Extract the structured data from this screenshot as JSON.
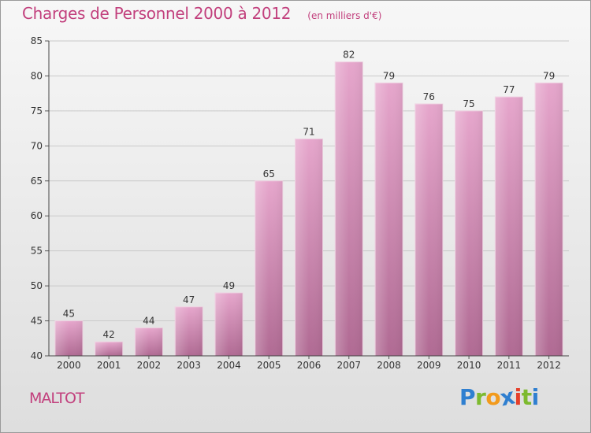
{
  "title": "Charges de Personnel 2000 à 2012",
  "unit": "(en milliers d'€)",
  "commune": "MALTOT",
  "logo": {
    "letters": [
      "P",
      "r",
      "o",
      "x",
      "i",
      "t",
      "i"
    ],
    "colors": [
      "#2f7fd0",
      "#7dba2f",
      "#f29a1c",
      "#2f7fd0",
      "#e5402a",
      "#7dba2f",
      "#2f7fd0"
    ]
  },
  "colors": {
    "bar_top": "#e6a6cc",
    "bar_bottom": "#b06a93",
    "title": "#c2407d"
  },
  "chart_data": {
    "type": "bar",
    "categories": [
      "2000",
      "2001",
      "2002",
      "2003",
      "2004",
      "2005",
      "2006",
      "2007",
      "2008",
      "2009",
      "2010",
      "2011",
      "2012"
    ],
    "values": [
      45,
      42,
      44,
      47,
      49,
      65,
      71,
      82,
      79,
      76,
      75,
      77,
      79
    ],
    "data_labels": [
      "45",
      "42",
      "44",
      "47",
      "49",
      "65",
      "71",
      "82",
      "79",
      "76",
      "75",
      "77",
      "79"
    ],
    "ylim": [
      40,
      85
    ],
    "yticks": [
      40,
      45,
      50,
      55,
      60,
      65,
      70,
      75,
      80,
      85
    ],
    "ytick_labels": [
      "40",
      "45",
      "50",
      "55",
      "60",
      "65",
      "70",
      "75",
      "80",
      "85"
    ],
    "grid": true,
    "xlabel": "",
    "ylabel": ""
  }
}
